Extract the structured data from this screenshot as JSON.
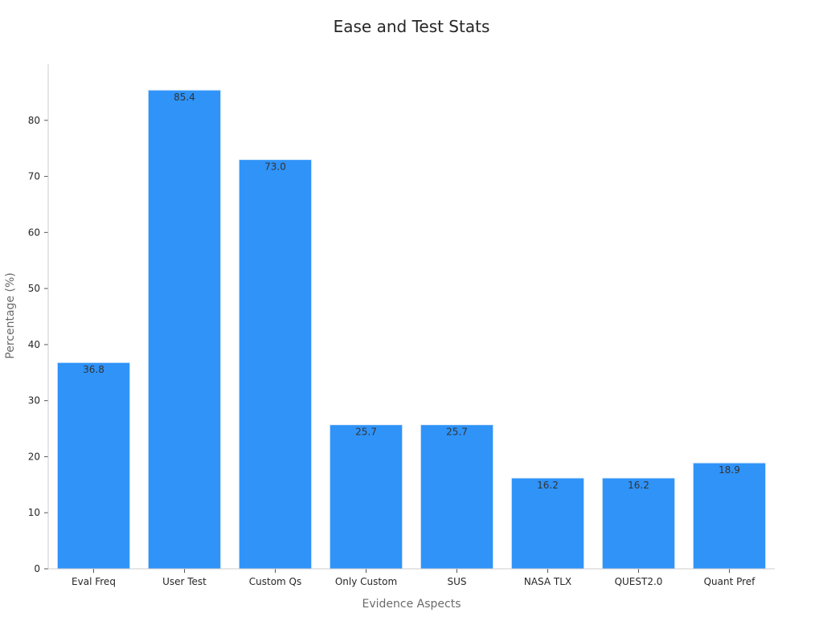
{
  "chart_data": {
    "type": "bar",
    "title": "Ease and Test Stats",
    "xlabel": "Evidence Aspects",
    "ylabel": "Percentage (%)",
    "categories": [
      "Eval Freq",
      "User Test",
      "Custom Qs",
      "Only Custom",
      "SUS",
      "NASA TLX",
      "QUEST2.0",
      "Quant Pref"
    ],
    "values": [
      36.8,
      85.4,
      73.0,
      25.7,
      25.7,
      16.2,
      16.2,
      18.9
    ],
    "data_labels": [
      "36.8",
      "85.4",
      "73.0",
      "25.7",
      "25.7",
      "16.2",
      "16.2",
      "18.9"
    ],
    "ylim": [
      0,
      90
    ],
    "yticks": [
      0,
      10,
      20,
      30,
      40,
      50,
      60,
      70,
      80
    ],
    "grid": false,
    "bar_color": "#2f93f8",
    "bar_edge_color": "#e8f1fb"
  }
}
